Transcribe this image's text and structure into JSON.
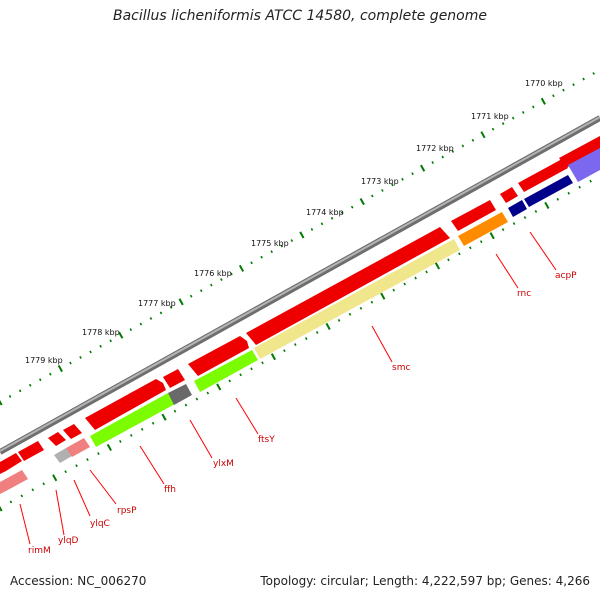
{
  "title": "Bacillus licheniformis ATCC 14580, complete genome",
  "footer": {
    "accession": "Accession: NC_006270",
    "summary": "Topology: circular; Length: 4,222,597 bp; Genes: 4,266"
  },
  "ruler_labels": [
    "1770 kbp",
    "1771 kbp",
    "1772 kbp",
    "1773 kbp",
    "1774 kbp",
    "1775 kbp",
    "1776 kbp",
    "1777 kbp",
    "1778 kbp",
    "1779 kbp"
  ],
  "gene_labels": [
    "acpP",
    "rnc",
    "smc",
    "ftsY",
    "ylxM",
    "ffh",
    "rpsP",
    "ylqC",
    "ylqD",
    "rimM"
  ],
  "colors": {
    "backbone": "#8a8a8a",
    "cds": "#ff0000",
    "acpP": "#00008b",
    "rnc": "#ff8c00",
    "smc": "#f0e68c",
    "ftsY": "#7cfc00",
    "ylxM": "#696969",
    "light_red": "#f08080",
    "ylqD": "#b0b0b0",
    "slate": "#7b68ee",
    "tick": "#007a00",
    "label_line": "#ff0000"
  }
}
